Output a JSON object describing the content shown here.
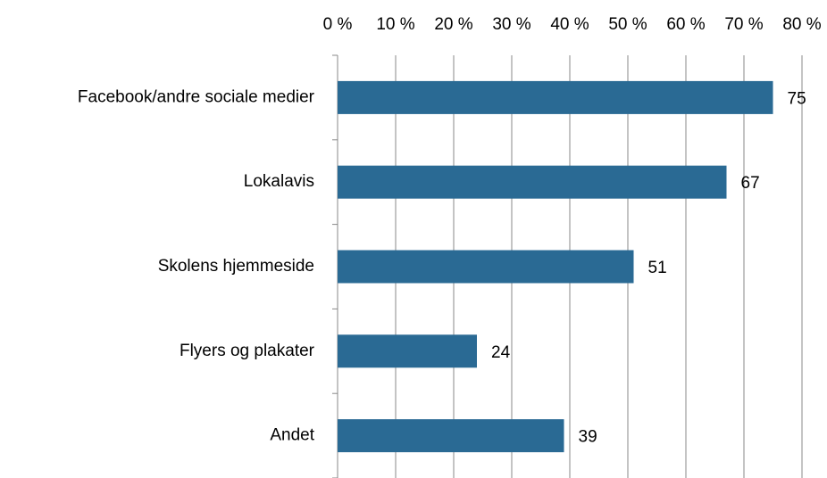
{
  "chart_data": {
    "type": "bar",
    "orientation": "horizontal",
    "categories": [
      "Facebook/andre sociale medier",
      "Lokalavis",
      "Skolens hjemmeside",
      "Flyers og plakater",
      "Andet"
    ],
    "values": [
      75,
      67,
      51,
      24,
      39
    ],
    "color": "#2a6a94",
    "xlim": [
      0,
      80
    ],
    "xticks": [
      {
        "value": 0,
        "label": "0 %"
      },
      {
        "value": 10,
        "label": "10 %"
      },
      {
        "value": 20,
        "label": "20 %"
      },
      {
        "value": 30,
        "label": "30 %"
      },
      {
        "value": 40,
        "label": "40 %"
      },
      {
        "value": 50,
        "label": "50 %"
      },
      {
        "value": 60,
        "label": "60 %"
      },
      {
        "value": 70,
        "label": "70 %"
      },
      {
        "value": 80,
        "label": "80 %"
      }
    ],
    "grid": true
  }
}
